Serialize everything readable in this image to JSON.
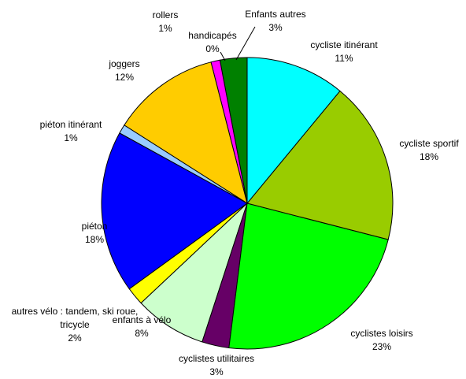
{
  "chart_data": {
    "type": "pie",
    "categories": [
      "cycliste itinérant",
      "cycliste sportif",
      "cyclistes loisirs",
      "cyclistes utilitaires",
      "enfants à vélo",
      "autres vélo : tandem, ski roue, tricycle",
      "piéton",
      "piéton itinérant",
      "joggers",
      "rollers",
      "handicapés",
      "Enfants autres"
    ],
    "values": [
      11,
      18,
      23,
      3,
      8,
      2,
      18,
      1,
      12,
      1,
      0,
      3
    ],
    "value_labels": [
      "11%",
      "18%",
      "23%",
      "3%",
      "8%",
      "2%",
      "18%",
      "1%",
      "12%",
      "1%",
      "0%",
      "3%"
    ],
    "colors": [
      "#00ffff",
      "#99cc00",
      "#00ff00",
      "#660066",
      "#ccffcc",
      "#ffff00",
      "#0000ff",
      "#99ccff",
      "#ffcc00",
      "#ff00ff",
      "#ffffff",
      "#008000"
    ]
  }
}
